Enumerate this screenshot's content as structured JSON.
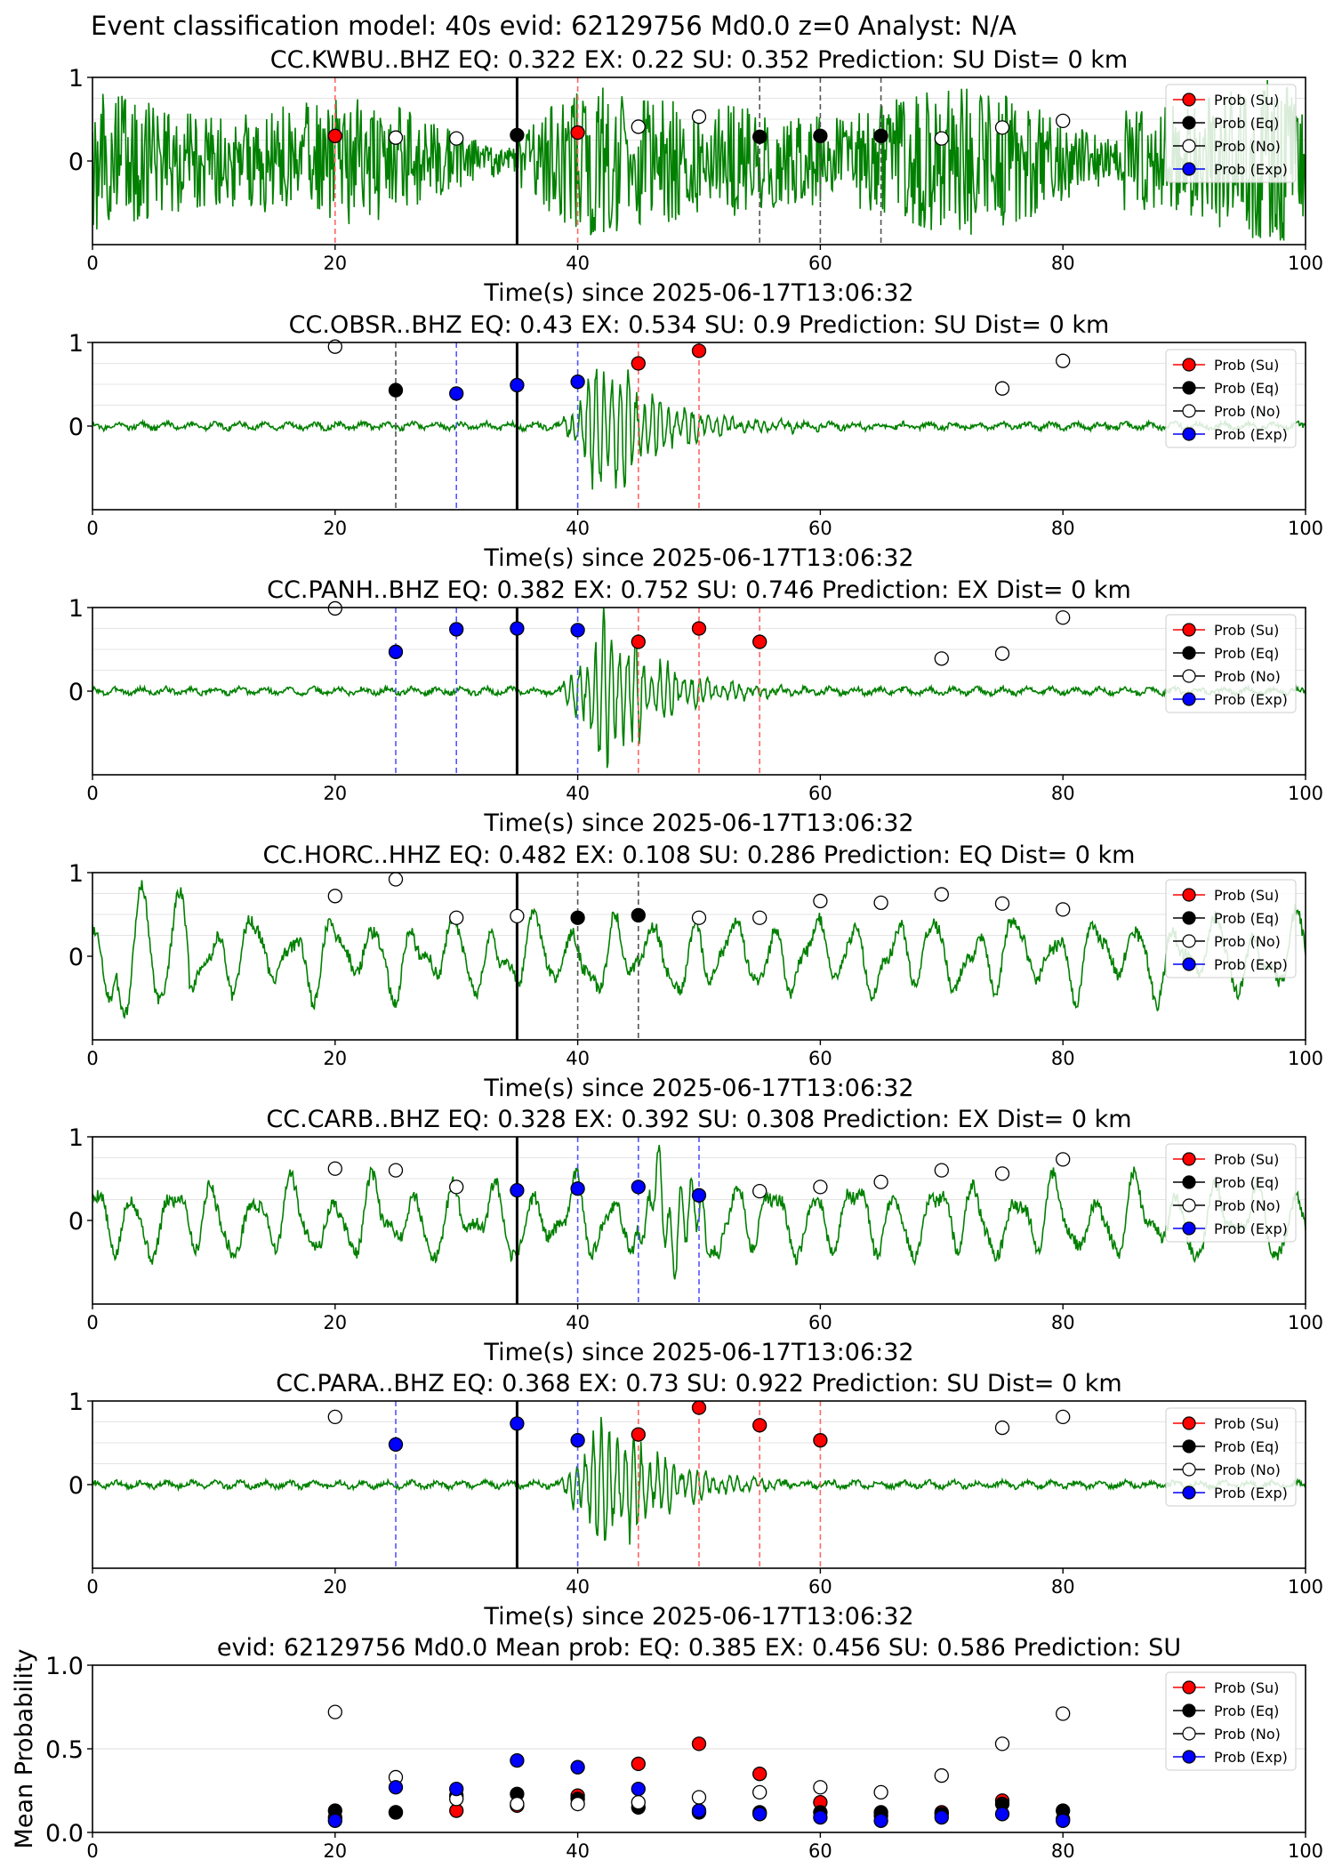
{
  "suptitle": "Event classification model: 40s evid: 62129756 Md0.0 z=0 Analyst: N/A",
  "colors": {
    "su": "#ff0000",
    "eq": "#000000",
    "no": "#ffffff",
    "exp": "#0000ff",
    "waveform": "#008000"
  },
  "legend": [
    "Prob (Su)",
    "Prob (Eq)",
    "Prob (No)",
    "Prob (Exp)"
  ],
  "xlabel": "Time(s) since 2025-06-17T13:06:32",
  "chart_data": [
    {
      "type": "scatter",
      "title": "CC.KWBU..BHZ   EQ: 0.322  EX: 0.22  SU: 0.352   Prediction: SU    Dist= 0 km",
      "xlabel": "Time(s) since 2025-06-17T13:06:32",
      "xlim": [
        0,
        100
      ],
      "ylim": [
        -1,
        1
      ],
      "xticks": [
        0,
        20,
        40,
        60,
        80,
        100
      ],
      "yticks": [
        0,
        1
      ],
      "ytick_labels": [
        "0",
        "1"
      ],
      "origin_line": 35,
      "waveform_style": "noisy",
      "points": [
        {
          "x": 20,
          "y": 0.3,
          "cls": "su"
        },
        {
          "x": 25,
          "y": 0.28,
          "cls": "no"
        },
        {
          "x": 30,
          "y": 0.27,
          "cls": "no"
        },
        {
          "x": 35,
          "y": 0.31,
          "cls": "eq"
        },
        {
          "x": 40,
          "y": 0.34,
          "cls": "su"
        },
        {
          "x": 45,
          "y": 0.41,
          "cls": "no"
        },
        {
          "x": 50,
          "y": 0.53,
          "cls": "no"
        },
        {
          "x": 55,
          "y": 0.29,
          "cls": "eq"
        },
        {
          "x": 60,
          "y": 0.3,
          "cls": "eq"
        },
        {
          "x": 65,
          "y": 0.3,
          "cls": "eq"
        },
        {
          "x": 70,
          "y": 0.27,
          "cls": "no"
        },
        {
          "x": 75,
          "y": 0.4,
          "cls": "no"
        },
        {
          "x": 80,
          "y": 0.48,
          "cls": "no"
        }
      ],
      "legend": [
        "Prob (Su)",
        "Prob (Eq)",
        "Prob (No)",
        "Prob (Exp)"
      ]
    },
    {
      "type": "scatter",
      "title": "CC.OBSR..BHZ   EQ: 0.43  EX: 0.534  SU: 0.9   Prediction: SU    Dist= 0 km",
      "xlabel": "Time(s) since 2025-06-17T13:06:32",
      "xlim": [
        0,
        100
      ],
      "ylim": [
        -1,
        1
      ],
      "xticks": [
        0,
        20,
        40,
        60,
        80,
        100
      ],
      "yticks": [
        0,
        1
      ],
      "ytick_labels": [
        "0",
        "1"
      ],
      "origin_line": 35,
      "waveform_style": "quiet",
      "points": [
        {
          "x": 20,
          "y": 0.95,
          "cls": "no"
        },
        {
          "x": 25,
          "y": 0.43,
          "cls": "eq"
        },
        {
          "x": 30,
          "y": 0.39,
          "cls": "exp"
        },
        {
          "x": 35,
          "y": 0.49,
          "cls": "exp"
        },
        {
          "x": 40,
          "y": 0.53,
          "cls": "exp"
        },
        {
          "x": 45,
          "y": 0.75,
          "cls": "su"
        },
        {
          "x": 50,
          "y": 0.9,
          "cls": "su"
        },
        {
          "x": 75,
          "y": 0.45,
          "cls": "no"
        },
        {
          "x": 80,
          "y": 0.78,
          "cls": "no"
        }
      ],
      "legend": [
        "Prob (Su)",
        "Prob (Eq)",
        "Prob (No)",
        "Prob (Exp)"
      ]
    },
    {
      "type": "scatter",
      "title": "CC.PANH..BHZ   EQ: 0.382  EX: 0.752  SU: 0.746   Prediction: EX    Dist= 0 km",
      "xlabel": "Time(s) since 2025-06-17T13:06:32",
      "xlim": [
        0,
        100
      ],
      "ylim": [
        -1,
        1
      ],
      "xticks": [
        0,
        20,
        40,
        60,
        80,
        100
      ],
      "yticks": [
        0,
        1
      ],
      "ytick_labels": [
        "0",
        "1"
      ],
      "origin_line": 35,
      "waveform_style": "quiet",
      "points": [
        {
          "x": 20,
          "y": 0.99,
          "cls": "no"
        },
        {
          "x": 25,
          "y": 0.47,
          "cls": "exp"
        },
        {
          "x": 30,
          "y": 0.74,
          "cls": "exp"
        },
        {
          "x": 35,
          "y": 0.75,
          "cls": "exp"
        },
        {
          "x": 40,
          "y": 0.73,
          "cls": "exp"
        },
        {
          "x": 45,
          "y": 0.59,
          "cls": "su"
        },
        {
          "x": 50,
          "y": 0.75,
          "cls": "su"
        },
        {
          "x": 55,
          "y": 0.59,
          "cls": "su"
        },
        {
          "x": 70,
          "y": 0.39,
          "cls": "no"
        },
        {
          "x": 75,
          "y": 0.45,
          "cls": "no"
        },
        {
          "x": 80,
          "y": 0.88,
          "cls": "no"
        }
      ],
      "legend": [
        "Prob (Su)",
        "Prob (Eq)",
        "Prob (No)",
        "Prob (Exp)"
      ]
    },
    {
      "type": "scatter",
      "title": "CC.HORC..HHZ   EQ: 0.482  EX: 0.108  SU: 0.286   Prediction: EQ    Dist= 0 km",
      "xlabel": "Time(s) since 2025-06-17T13:06:32",
      "xlim": [
        0,
        100
      ],
      "ylim": [
        -1,
        1
      ],
      "xticks": [
        0,
        20,
        40,
        60,
        80,
        100
      ],
      "yticks": [
        0,
        1
      ],
      "ytick_labels": [
        "0",
        "1"
      ],
      "origin_line": 35,
      "waveform_style": "wavy",
      "points": [
        {
          "x": 20,
          "y": 0.72,
          "cls": "no"
        },
        {
          "x": 25,
          "y": 0.92,
          "cls": "no"
        },
        {
          "x": 30,
          "y": 0.46,
          "cls": "no"
        },
        {
          "x": 35,
          "y": 0.48,
          "cls": "no"
        },
        {
          "x": 40,
          "y": 0.46,
          "cls": "eq"
        },
        {
          "x": 45,
          "y": 0.49,
          "cls": "eq"
        },
        {
          "x": 50,
          "y": 0.46,
          "cls": "no"
        },
        {
          "x": 55,
          "y": 0.46,
          "cls": "no"
        },
        {
          "x": 60,
          "y": 0.66,
          "cls": "no"
        },
        {
          "x": 65,
          "y": 0.64,
          "cls": "no"
        },
        {
          "x": 70,
          "y": 0.74,
          "cls": "no"
        },
        {
          "x": 75,
          "y": 0.63,
          "cls": "no"
        },
        {
          "x": 80,
          "y": 0.56,
          "cls": "no"
        }
      ],
      "legend": [
        "Prob (Su)",
        "Prob (Eq)",
        "Prob (No)",
        "Prob (Exp)"
      ]
    },
    {
      "type": "scatter",
      "title": "CC.CARB..BHZ   EQ: 0.328  EX: 0.392  SU: 0.308   Prediction: EX    Dist= 0 km",
      "xlabel": "Time(s) since 2025-06-17T13:06:32",
      "xlim": [
        0,
        100
      ],
      "ylim": [
        -1,
        1
      ],
      "xticks": [
        0,
        20,
        40,
        60,
        80,
        100
      ],
      "yticks": [
        0,
        1
      ],
      "ytick_labels": [
        "0",
        "1"
      ],
      "origin_line": 35,
      "waveform_style": "wavy",
      "points": [
        {
          "x": 20,
          "y": 0.62,
          "cls": "no"
        },
        {
          "x": 25,
          "y": 0.6,
          "cls": "no"
        },
        {
          "x": 30,
          "y": 0.4,
          "cls": "no"
        },
        {
          "x": 35,
          "y": 0.36,
          "cls": "exp"
        },
        {
          "x": 40,
          "y": 0.38,
          "cls": "exp"
        },
        {
          "x": 45,
          "y": 0.4,
          "cls": "exp"
        },
        {
          "x": 50,
          "y": 0.3,
          "cls": "exp"
        },
        {
          "x": 55,
          "y": 0.35,
          "cls": "no"
        },
        {
          "x": 60,
          "y": 0.4,
          "cls": "no"
        },
        {
          "x": 65,
          "y": 0.46,
          "cls": "no"
        },
        {
          "x": 70,
          "y": 0.6,
          "cls": "no"
        },
        {
          "x": 75,
          "y": 0.56,
          "cls": "no"
        },
        {
          "x": 80,
          "y": 0.73,
          "cls": "no"
        }
      ],
      "legend": [
        "Prob (Su)",
        "Prob (Eq)",
        "Prob (No)",
        "Prob (Exp)"
      ]
    },
    {
      "type": "scatter",
      "title": "CC.PARA..BHZ   EQ: 0.368  EX: 0.73  SU: 0.922   Prediction: SU    Dist= 0 km",
      "xlabel": "Time(s) since 2025-06-17T13:06:32",
      "xlim": [
        0,
        100
      ],
      "ylim": [
        -1,
        1
      ],
      "xticks": [
        0,
        20,
        40,
        60,
        80,
        100
      ],
      "yticks": [
        0,
        1
      ],
      "ytick_labels": [
        "0",
        "1"
      ],
      "origin_line": 35,
      "waveform_style": "quiet",
      "points": [
        {
          "x": 20,
          "y": 0.81,
          "cls": "no"
        },
        {
          "x": 25,
          "y": 0.48,
          "cls": "exp"
        },
        {
          "x": 35,
          "y": 0.73,
          "cls": "exp"
        },
        {
          "x": 40,
          "y": 0.53,
          "cls": "exp"
        },
        {
          "x": 45,
          "y": 0.6,
          "cls": "su"
        },
        {
          "x": 50,
          "y": 0.92,
          "cls": "su"
        },
        {
          "x": 55,
          "y": 0.71,
          "cls": "su"
        },
        {
          "x": 60,
          "y": 0.53,
          "cls": "su"
        },
        {
          "x": 75,
          "y": 0.68,
          "cls": "no"
        },
        {
          "x": 80,
          "y": 0.81,
          "cls": "no"
        }
      ],
      "legend": [
        "Prob (Su)",
        "Prob (Eq)",
        "Prob (No)",
        "Prob (Exp)"
      ]
    },
    {
      "type": "scatter",
      "title": "evid: 62129756  Md0.0   Mean prob:   EQ: 0.385  EX: 0.456  SU: 0.586   Prediction: SU",
      "xlabel": "",
      "ylabel": "Mean Probability",
      "xlim": [
        0,
        100
      ],
      "ylim": [
        0,
        1
      ],
      "xticks": [
        0,
        20,
        40,
        60,
        80,
        100
      ],
      "yticks": [
        0,
        0.5,
        1
      ],
      "ytick_labels": [
        "0.0",
        "0.5",
        "1.0"
      ],
      "grid": true,
      "legend": [
        "Prob (Su)",
        "Prob (Eq)",
        "Prob (No)",
        "Prob (Exp)"
      ],
      "series": [
        {
          "name": "Prob (Su)",
          "cls": "su",
          "x": [
            20,
            25,
            30,
            35,
            40,
            45,
            50,
            55,
            60,
            65,
            70,
            75,
            80
          ],
          "y": [
            0.09,
            0.12,
            0.13,
            0.16,
            0.22,
            0.41,
            0.53,
            0.35,
            0.18,
            0.1,
            0.12,
            0.19,
            0.08
          ]
        },
        {
          "name": "Prob (Eq)",
          "cls": "eq",
          "x": [
            20,
            25,
            30,
            35,
            40,
            45,
            50,
            55,
            60,
            65,
            70,
            75,
            80
          ],
          "y": [
            0.13,
            0.12,
            0.22,
            0.23,
            0.2,
            0.15,
            0.12,
            0.12,
            0.12,
            0.12,
            0.11,
            0.17,
            0.13
          ]
        },
        {
          "name": "Prob (No)",
          "cls": "no",
          "x": [
            20,
            25,
            30,
            35,
            40,
            45,
            50,
            55,
            60,
            65,
            70,
            75,
            80
          ],
          "y": [
            0.72,
            0.33,
            0.2,
            0.17,
            0.17,
            0.18,
            0.21,
            0.24,
            0.27,
            0.24,
            0.34,
            0.53,
            0.71
          ]
        },
        {
          "name": "Prob (Exp)",
          "cls": "exp",
          "x": [
            20,
            25,
            30,
            35,
            40,
            45,
            50,
            55,
            60,
            65,
            70,
            75,
            80
          ],
          "y": [
            0.07,
            0.27,
            0.26,
            0.43,
            0.39,
            0.26,
            0.13,
            0.11,
            0.09,
            0.07,
            0.09,
            0.11,
            0.07
          ]
        }
      ]
    }
  ]
}
